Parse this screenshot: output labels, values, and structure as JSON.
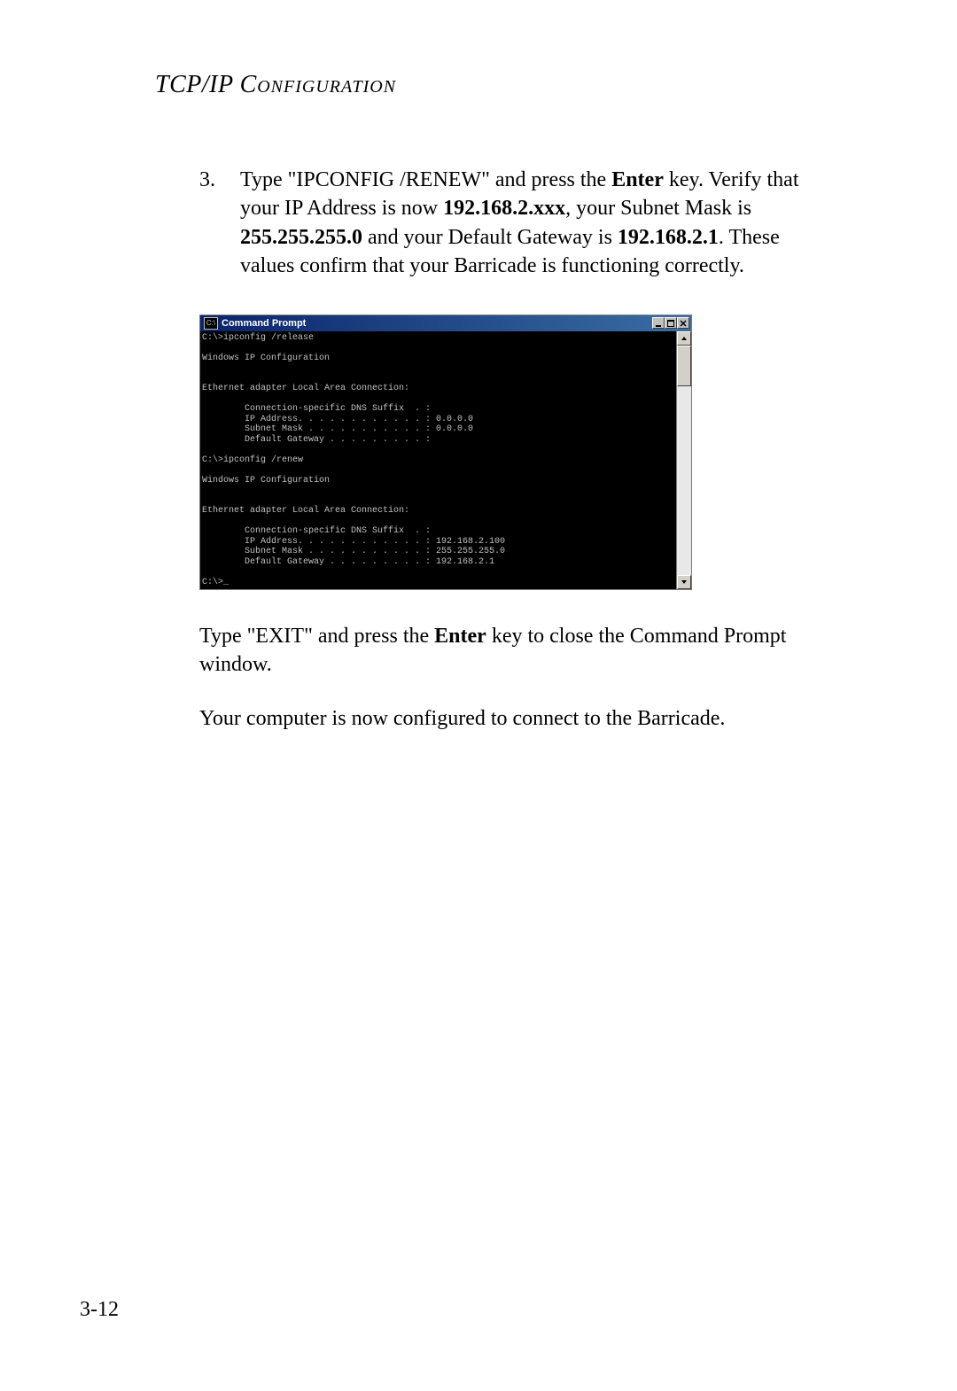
{
  "header": {
    "prefix": "TCP/IP ",
    "smallcaps": "Configuration"
  },
  "step": {
    "number": "3.",
    "text_parts": [
      {
        "t": "Type \"IPCONFIG /RENEW\" and press the ",
        "b": false
      },
      {
        "t": "Enter",
        "b": true
      },
      {
        "t": " key. Verify that your IP Address is now ",
        "b": false
      },
      {
        "t": "192.168.2.xxx",
        "b": true
      },
      {
        "t": ", your Subnet Mask is ",
        "b": false
      },
      {
        "t": "255.255.255.0",
        "b": true
      },
      {
        "t": " and your Default Gateway is ",
        "b": false
      },
      {
        "t": "192.168.2.1",
        "b": true
      },
      {
        "t": ". These values confirm that your Barricade is functioning correctly.",
        "b": false
      }
    ]
  },
  "cmd": {
    "title": "Command Prompt",
    "app_icon_text": "C:\\",
    "lines": [
      "C:\\>ipconfig /release",
      "",
      "Windows IP Configuration",
      "",
      "",
      "Ethernet adapter Local Area Connection:",
      "",
      "        Connection-specific DNS Suffix  . :",
      "        IP Address. . . . . . . . . . . . : 0.0.0.0",
      "        Subnet Mask . . . . . . . . . . . : 0.0.0.0",
      "        Default Gateway . . . . . . . . . :",
      "",
      "C:\\>ipconfig /renew",
      "",
      "Windows IP Configuration",
      "",
      "",
      "Ethernet adapter Local Area Connection:",
      "",
      "        Connection-specific DNS Suffix  . :",
      "        IP Address. . . . . . . . . . . . : 192.168.2.100",
      "        Subnet Mask . . . . . . . . . . . : 255.255.255.0",
      "        Default Gateway . . . . . . . . . : 192.168.2.1",
      "",
      "C:\\>_"
    ],
    "colors": {
      "titlebar_start": "#0a246a",
      "titlebar_end": "#3a6ea5",
      "titlebar_text": "#ffffff",
      "background": "#000000",
      "text": "#c0c0c0",
      "button_face": "#c0c0c0",
      "scrollbar_face": "#d4d0c8"
    }
  },
  "after": {
    "p1_parts": [
      {
        "t": "Type \"EXIT\" and press the ",
        "b": false
      },
      {
        "t": "Enter",
        "b": true
      },
      {
        "t": " key to close the Command Prompt window.",
        "b": false
      }
    ],
    "p2": "Your computer is now configured to connect to the Barricade."
  },
  "page_number": "3-12"
}
